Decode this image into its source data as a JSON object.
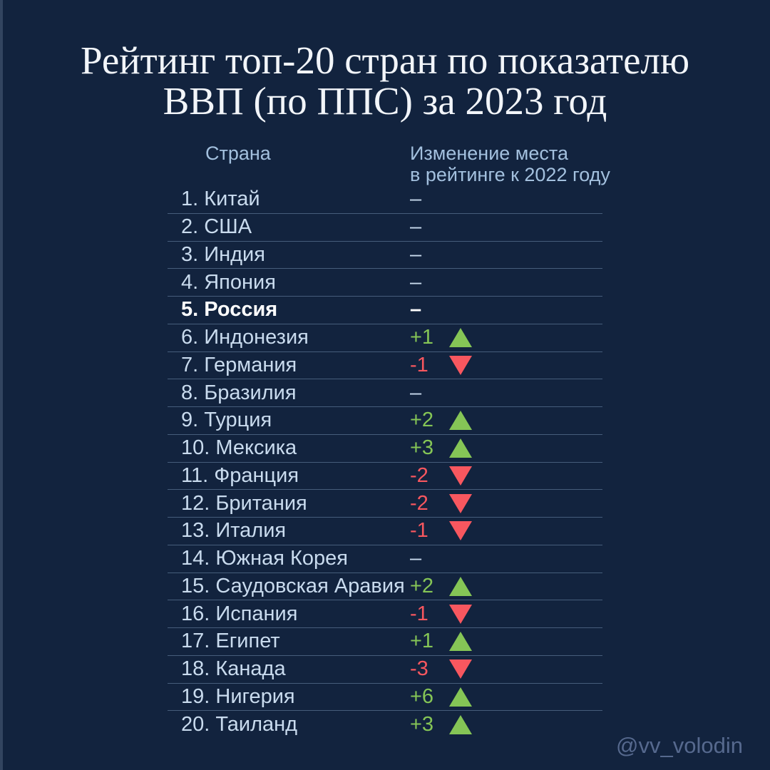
{
  "title": {
    "line1": "Рейтинг топ-20 стран по показателю",
    "line2": "ВВП (по ППС) за 2023 год"
  },
  "table_header": {
    "country": "Страна",
    "change_line1": "Изменение места",
    "change_line2": "в рейтинге к 2022 году"
  },
  "watermark": "@vv_volodin",
  "colors": {
    "background": "#12233e",
    "edge_strip": "#32445f",
    "title_text": "#f2f5f9",
    "header_text": "#a3c0de",
    "row_text": "#c9dbee",
    "highlight_text": "#ffffff",
    "up": "#85c556",
    "down": "#f8575f",
    "separator": "rgba(150,180,215,0.40)",
    "watermark": "#56698e"
  },
  "chart_data": {
    "type": "table",
    "title": "Рейтинг топ-20 стран по показателю ВВП (по ППС) за 2023 год",
    "columns": [
      "Страна",
      "Изменение места в рейтинге к 2022 году"
    ],
    "rows": [
      {
        "rank": 1,
        "country": "Китай",
        "change_display": "–",
        "change": 0,
        "direction": "none",
        "highlight": false
      },
      {
        "rank": 2,
        "country": "США",
        "change_display": "–",
        "change": 0,
        "direction": "none",
        "highlight": false
      },
      {
        "rank": 3,
        "country": "Индия",
        "change_display": "–",
        "change": 0,
        "direction": "none",
        "highlight": false
      },
      {
        "rank": 4,
        "country": "Япония",
        "change_display": "–",
        "change": 0,
        "direction": "none",
        "highlight": false
      },
      {
        "rank": 5,
        "country": "Россия",
        "change_display": "–",
        "change": 0,
        "direction": "none",
        "highlight": true
      },
      {
        "rank": 6,
        "country": "Индонезия",
        "change_display": "+1",
        "change": 1,
        "direction": "up",
        "highlight": false
      },
      {
        "rank": 7,
        "country": "Германия",
        "change_display": "-1",
        "change": -1,
        "direction": "down",
        "highlight": false
      },
      {
        "rank": 8,
        "country": "Бразилия",
        "change_display": "–",
        "change": 0,
        "direction": "none",
        "highlight": false
      },
      {
        "rank": 9,
        "country": "Турция",
        "change_display": "+2",
        "change": 2,
        "direction": "up",
        "highlight": false
      },
      {
        "rank": 10,
        "country": "Мексика",
        "change_display": "+3",
        "change": 3,
        "direction": "up",
        "highlight": false
      },
      {
        "rank": 11,
        "country": "Франция",
        "change_display": "-2",
        "change": -2,
        "direction": "down",
        "highlight": false
      },
      {
        "rank": 12,
        "country": "Британия",
        "change_display": "-2",
        "change": -2,
        "direction": "down",
        "highlight": false
      },
      {
        "rank": 13,
        "country": "Италия",
        "change_display": "-1",
        "change": -1,
        "direction": "down",
        "highlight": false
      },
      {
        "rank": 14,
        "country": "Южная Корея",
        "change_display": "–",
        "change": 0,
        "direction": "none",
        "highlight": false
      },
      {
        "rank": 15,
        "country": "Саудовская Аравия",
        "change_display": "+2",
        "change": 2,
        "direction": "up",
        "highlight": false
      },
      {
        "rank": 16,
        "country": "Испания",
        "change_display": "-1",
        "change": -1,
        "direction": "down",
        "highlight": false
      },
      {
        "rank": 17,
        "country": "Египет",
        "change_display": "+1",
        "change": 1,
        "direction": "up",
        "highlight": false
      },
      {
        "rank": 18,
        "country": "Канада",
        "change_display": "-3",
        "change": -3,
        "direction": "down",
        "highlight": false
      },
      {
        "rank": 19,
        "country": "Нигерия",
        "change_display": "+6",
        "change": 6,
        "direction": "up",
        "highlight": false
      },
      {
        "rank": 20,
        "country": "Таиланд",
        "change_display": "+3",
        "change": 3,
        "direction": "up",
        "highlight": false
      }
    ]
  }
}
